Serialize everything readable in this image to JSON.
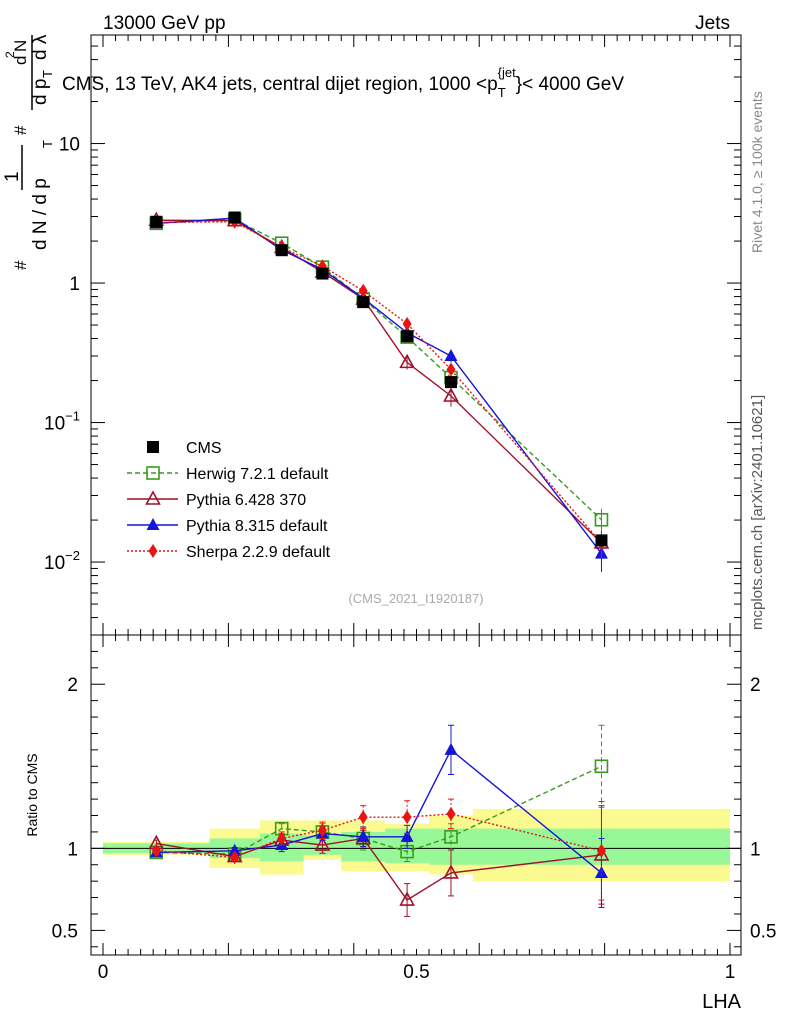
{
  "header": {
    "left": "13000 GeV pp",
    "right": "Jets"
  },
  "side_text": {
    "rivet": "Rivet 4.1.0, ≥ 100k events",
    "mcplots": "mcplots.cern.ch [arXiv:2401.10621]"
  },
  "chart_data": {
    "type": "line",
    "title": "CMS, 13 TeV, AK4 jets, central dijet region, 1000 <p_T^{jet}< 4000 GeV",
    "title_parts": {
      "main": "CMS, 13 TeV, AK4 jets, central dijet region, 1000 <p",
      "sub": "T",
      "sup": "{jet",
      "tail": "}< 4000 GeV"
    },
    "xlabel": "LHA",
    "ylabel": "1/(dN/dpT) d²N/(dpT dλ)",
    "ylabel_lines": [
      "#",
      "1",
      "d N / d p",
      "T",
      "#",
      "d p",
      "T",
      "d",
      "2",
      "N",
      "d λ"
    ],
    "xlim": [
      0,
      1
    ],
    "ylim": [
      0.003,
      60
    ],
    "yscale": "log",
    "ratio_ylabel": "Ratio to CMS",
    "ratio_ylim": [
      0.35,
      2.3
    ],
    "watermark": "(CMS_2021_I1920187)",
    "x_ticks": [
      "0",
      "0.5",
      "1"
    ],
    "y_ticks": [
      {
        "v": 10,
        "base": "10",
        "exp": ""
      },
      {
        "v": 1,
        "base": "1",
        "exp": ""
      },
      {
        "v": 0.1,
        "base": "10",
        "exp": "−1"
      },
      {
        "v": 0.01,
        "base": "10",
        "exp": "−2"
      }
    ],
    "ratio_ticks": [
      "2",
      "1",
      "0.5"
    ],
    "bins": [
      {
        "lo": 0.0,
        "hi": 0.17,
        "band_inner": [
          0.97,
          1.03
        ],
        "band_outer": [
          0.96,
          1.04
        ]
      },
      {
        "lo": 0.17,
        "hi": 0.25,
        "band_inner": [
          0.94,
          1.06
        ],
        "band_outer": [
          0.88,
          1.12
        ]
      },
      {
        "lo": 0.25,
        "hi": 0.32,
        "band_inner": [
          0.92,
          1.09
        ],
        "band_outer": [
          0.84,
          1.17
        ]
      },
      {
        "lo": 0.32,
        "hi": 0.38,
        "band_inner": [
          0.96,
          1.08
        ],
        "band_outer": [
          0.93,
          1.17
        ]
      },
      {
        "lo": 0.38,
        "hi": 0.45,
        "band_inner": [
          0.92,
          1.1
        ],
        "band_outer": [
          0.86,
          1.17
        ]
      },
      {
        "lo": 0.45,
        "hi": 0.52,
        "band_inner": [
          0.91,
          1.12
        ],
        "band_outer": [
          0.86,
          1.15
        ]
      },
      {
        "lo": 0.52,
        "hi": 0.59,
        "band_inner": [
          0.9,
          1.12
        ],
        "band_outer": [
          0.84,
          1.2
        ]
      },
      {
        "lo": 0.59,
        "hi": 1.0,
        "band_inner": [
          0.9,
          1.12
        ],
        "band_outer": [
          0.8,
          1.24
        ]
      }
    ],
    "series": [
      {
        "name": "CMS",
        "color": "#000000",
        "dash": "",
        "marker": "square-filled",
        "x": [
          0.085,
          0.21,
          0.285,
          0.35,
          0.415,
          0.485,
          0.555,
          0.795
        ],
        "y": [
          2.75,
          2.95,
          1.72,
          1.17,
          0.73,
          0.415,
          0.195,
          0.0143
        ]
      },
      {
        "name": "Herwig 7.2.1 default",
        "color": "#3a9a1e",
        "dash": "5,3",
        "marker": "square-open",
        "x": [
          0.085,
          0.21,
          0.285,
          0.35,
          0.415,
          0.485,
          0.555,
          0.795
        ],
        "y": [
          2.68,
          2.85,
          1.93,
          1.3,
          0.77,
          0.41,
          0.21,
          0.0201
        ],
        "yerr": [
          0.03,
          0.03,
          0.02,
          0.02,
          0.01,
          0.01,
          0.01,
          0.004
        ],
        "ratio": [
          0.975,
          0.965,
          1.12,
          1.1,
          1.06,
          0.98,
          1.07,
          1.5
        ],
        "rerr": [
          0.02,
          0.02,
          0.03,
          0.05,
          0.07,
          0.06,
          0.08,
          0.25
        ]
      },
      {
        "name": "Pythia 6.428 370",
        "color": "#a0112a",
        "dash": "",
        "marker": "triangle-open",
        "x": [
          0.085,
          0.21,
          0.285,
          0.35,
          0.415,
          0.485,
          0.555,
          0.795
        ],
        "y": [
          2.82,
          2.8,
          1.8,
          1.2,
          0.77,
          0.27,
          0.155,
          0.0137
        ],
        "yerr": [
          0.03,
          0.03,
          0.02,
          0.02,
          0.01,
          0.03,
          0.025,
          0.003
        ],
        "ratio": [
          1.03,
          0.95,
          1.05,
          1.02,
          1.06,
          0.685,
          0.85,
          0.96
        ],
        "rerr": [
          0.02,
          0.02,
          0.03,
          0.05,
          0.05,
          0.1,
          0.14,
          0.3
        ]
      },
      {
        "name": "Pythia 8.315 default",
        "color": "#1515d8",
        "dash": "",
        "marker": "triangle-filled",
        "x": [
          0.085,
          0.21,
          0.285,
          0.35,
          0.415,
          0.485,
          0.555,
          0.795
        ],
        "y": [
          2.68,
          2.92,
          1.73,
          1.25,
          0.78,
          0.44,
          0.3,
          0.0115
        ],
        "yerr": [
          0.03,
          0.03,
          0.02,
          0.02,
          0.01,
          0.02,
          0.03,
          0.003
        ],
        "ratio": [
          0.975,
          0.985,
          1.02,
          1.09,
          1.07,
          1.07,
          1.6,
          0.85
        ],
        "rerr": [
          0.02,
          0.02,
          0.04,
          0.04,
          0.06,
          0.07,
          0.15,
          0.21
        ]
      },
      {
        "name": "Sherpa 2.2.9 default",
        "color": "#e81414",
        "dash": "2,2",
        "marker": "diamond-filled",
        "x": [
          0.085,
          0.21,
          0.285,
          0.35,
          0.415,
          0.485,
          0.555,
          0.795
        ],
        "y": [
          2.72,
          2.75,
          1.8,
          1.32,
          0.88,
          0.51,
          0.24,
          0.0137
        ],
        "yerr": [
          0.03,
          0.03,
          0.02,
          0.02,
          0.02,
          0.02,
          0.02,
          0.003
        ],
        "ratio": [
          0.985,
          0.945,
          1.06,
          1.11,
          1.19,
          1.19,
          1.21,
          0.985
        ],
        "rerr": [
          0.02,
          0.02,
          0.04,
          0.05,
          0.07,
          0.1,
          0.09,
          0.3
        ]
      }
    ]
  }
}
